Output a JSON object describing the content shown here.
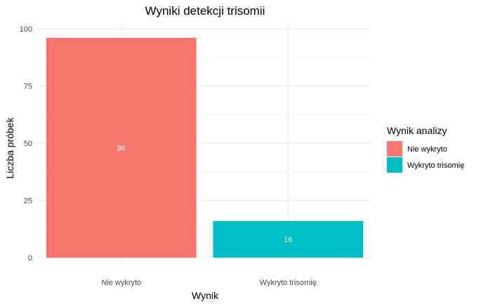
{
  "chart_data": {
    "type": "bar",
    "title": "Wyniki detekcji trisomii",
    "xlabel": "Wynik",
    "ylabel": "Liczba próbek",
    "categories": [
      "Nie wykryto",
      "Wykryto trisomię"
    ],
    "values": [
      96,
      16
    ],
    "data_labels": [
      "96",
      "16"
    ],
    "colors": [
      "#F8766D",
      "#00BFC4"
    ],
    "ylim": [
      0,
      100
    ],
    "yticks": [
      0,
      25,
      50,
      75,
      100
    ],
    "grid": true,
    "legend": {
      "title": "Wynik analizy",
      "position": "right",
      "entries": [
        "Nie wykryto",
        "Wykryto trisomię"
      ]
    }
  }
}
